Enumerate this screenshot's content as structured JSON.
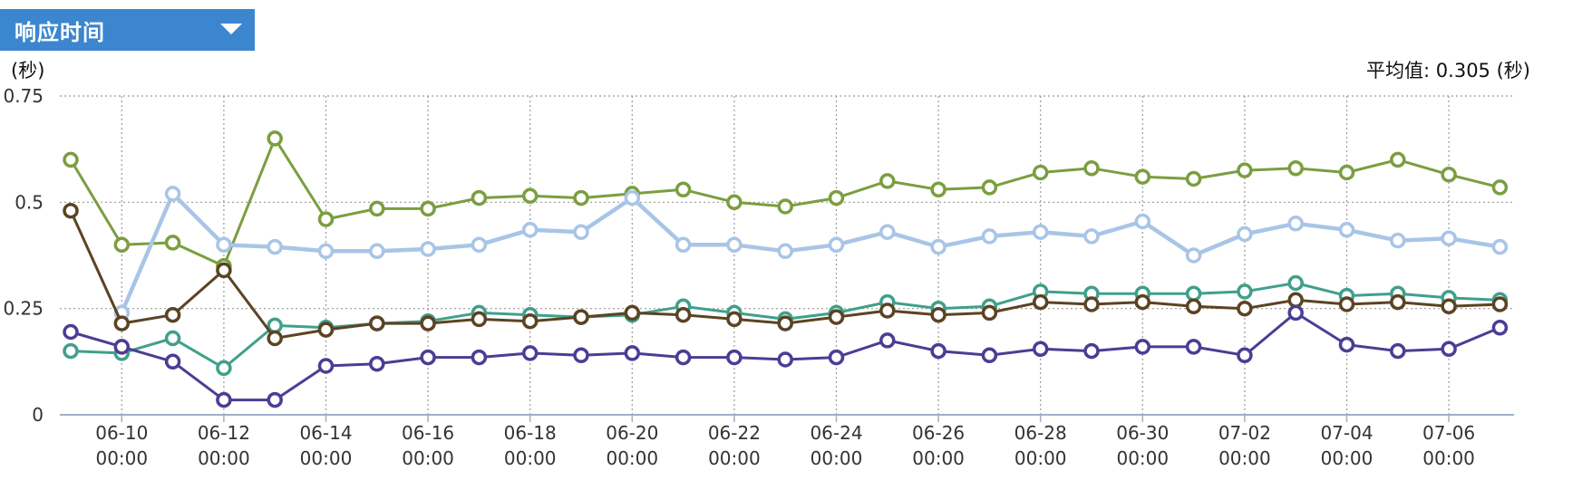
{
  "selector": {
    "label": "响应时间",
    "icon": "chevron-down-icon"
  },
  "unit_label": "(秒)",
  "average": {
    "label": "平均值:",
    "value": "0.305",
    "unit": "(秒)"
  },
  "chart_data": {
    "type": "line",
    "title": "",
    "xlabel": "",
    "ylabel": "(秒)",
    "ylim": [
      0,
      0.75
    ],
    "grid": true,
    "y_ticks": [
      {
        "value": 0,
        "label": "0"
      },
      {
        "value": 0.25,
        "label": "0.25"
      },
      {
        "value": 0.5,
        "label": "0.5"
      },
      {
        "value": 0.75,
        "label": "0.75"
      }
    ],
    "x": [
      "06-09",
      "06-10",
      "06-11",
      "06-12",
      "06-13",
      "06-14",
      "06-15",
      "06-16",
      "06-17",
      "06-18",
      "06-19",
      "06-20",
      "06-21",
      "06-22",
      "06-23",
      "06-24",
      "06-25",
      "06-26",
      "06-27",
      "06-28",
      "06-29",
      "06-30",
      "07-01",
      "07-02",
      "07-03",
      "07-04",
      "07-05",
      "07-06",
      "07-07"
    ],
    "x_tick_labels": [
      {
        "index": 1,
        "date": "06-10",
        "time": "00:00"
      },
      {
        "index": 3,
        "date": "06-12",
        "time": "00:00"
      },
      {
        "index": 5,
        "date": "06-14",
        "time": "00:00"
      },
      {
        "index": 7,
        "date": "06-16",
        "time": "00:00"
      },
      {
        "index": 9,
        "date": "06-18",
        "time": "00:00"
      },
      {
        "index": 11,
        "date": "06-20",
        "time": "00:00"
      },
      {
        "index": 13,
        "date": "06-22",
        "time": "00:00"
      },
      {
        "index": 15,
        "date": "06-24",
        "time": "00:00"
      },
      {
        "index": 17,
        "date": "06-26",
        "time": "00:00"
      },
      {
        "index": 19,
        "date": "06-28",
        "time": "00:00"
      },
      {
        "index": 21,
        "date": "06-30",
        "time": "00:00"
      },
      {
        "index": 23,
        "date": "07-02",
        "time": "00:00"
      },
      {
        "index": 25,
        "date": "07-04",
        "time": "00:00"
      },
      {
        "index": 27,
        "date": "07-06",
        "time": "00:00"
      }
    ],
    "series": [
      {
        "color": "#7b9e40",
        "values": [
          0.6,
          0.4,
          0.405,
          0.35,
          0.65,
          0.46,
          0.485,
          0.485,
          0.51,
          0.515,
          0.51,
          0.52,
          0.53,
          0.5,
          0.49,
          0.51,
          0.55,
          0.53,
          0.535,
          0.57,
          0.58,
          0.56,
          0.555,
          0.575,
          0.58,
          0.57,
          0.6,
          0.565,
          0.535
        ]
      },
      {
        "color": "#a8c5e6",
        "values": [
          null,
          0.24,
          0.52,
          0.4,
          0.395,
          0.385,
          0.385,
          0.39,
          0.4,
          0.435,
          0.43,
          0.51,
          0.4,
          0.4,
          0.385,
          0.4,
          0.43,
          0.395,
          0.42,
          0.43,
          0.42,
          0.455,
          0.375,
          0.425,
          0.45,
          0.435,
          0.41,
          0.415,
          0.395
        ]
      },
      {
        "color": "#40a08a",
        "values": [
          0.15,
          0.145,
          0.18,
          0.11,
          0.21,
          0.205,
          0.215,
          0.22,
          0.24,
          0.235,
          0.23,
          0.235,
          0.255,
          0.24,
          0.225,
          0.24,
          0.265,
          0.25,
          0.255,
          0.29,
          0.285,
          0.285,
          0.285,
          0.29,
          0.31,
          0.28,
          0.285,
          0.275,
          0.27
        ]
      },
      {
        "color": "#5b4323",
        "values": [
          0.48,
          0.215,
          0.235,
          0.34,
          0.18,
          0.2,
          0.215,
          0.215,
          0.225,
          0.22,
          0.23,
          0.24,
          0.235,
          0.225,
          0.215,
          0.23,
          0.245,
          0.235,
          0.24,
          0.265,
          0.26,
          0.265,
          0.255,
          0.25,
          0.27,
          0.26,
          0.265,
          0.255,
          0.26
        ]
      },
      {
        "color": "#4b3d94",
        "values": [
          0.195,
          0.16,
          0.125,
          0.035,
          0.035,
          0.115,
          0.12,
          0.135,
          0.135,
          0.145,
          0.14,
          0.145,
          0.135,
          0.135,
          0.13,
          0.135,
          0.175,
          0.15,
          0.14,
          0.155,
          0.15,
          0.16,
          0.16,
          0.14,
          0.24,
          0.165,
          0.15,
          0.155,
          0.205
        ]
      }
    ]
  }
}
